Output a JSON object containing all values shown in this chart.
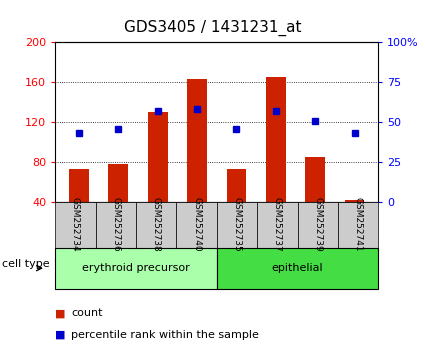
{
  "title": "GDS3405 / 1431231_at",
  "samples": [
    "GSM252734",
    "GSM252736",
    "GSM252738",
    "GSM252740",
    "GSM252735",
    "GSM252737",
    "GSM252739",
    "GSM252741"
  ],
  "counts": [
    73,
    78,
    130,
    163,
    73,
    165,
    85,
    42
  ],
  "percentiles": [
    43,
    46,
    57,
    58,
    46,
    57,
    51,
    43
  ],
  "ylim_left": [
    40,
    200
  ],
  "ylim_right": [
    0,
    100
  ],
  "yticks_left": [
    40,
    80,
    120,
    160,
    200
  ],
  "yticks_right": [
    0,
    25,
    50,
    75,
    100
  ],
  "bar_color": "#cc2200",
  "dot_color": "#0000cc",
  "bg_plot": "#ffffff",
  "bg_sample": "#cccccc",
  "cell_groups": [
    {
      "label": "erythroid precursor",
      "start": 0,
      "end": 4,
      "color": "#aaffaa"
    },
    {
      "label": "epithelial",
      "start": 4,
      "end": 8,
      "color": "#44dd44"
    }
  ],
  "cell_type_label": "cell type",
  "legend_count": "count",
  "legend_pct": "percentile rank within the sample",
  "title_fontsize": 11,
  "tick_fontsize": 8,
  "legend_fontsize": 8
}
